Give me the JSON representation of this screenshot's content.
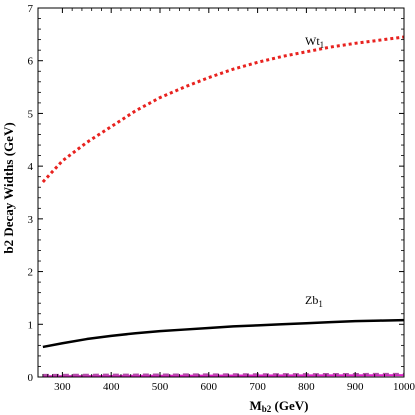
{
  "chart_data": {
    "type": "line",
    "xlabel": {
      "main": "M",
      "sub": "b2",
      "rest": " (GeV)"
    },
    "ylabel": "b2 Decay Widths (GeV)",
    "xlim": [
      250,
      1000
    ],
    "ylim": [
      0,
      7
    ],
    "x_ticks": [
      "300",
      "400",
      "500",
      "600",
      "700",
      "800",
      "900",
      "1000"
    ],
    "y_ticks": [
      "0",
      "1",
      "2",
      "3",
      "4",
      "5",
      "6",
      "7"
    ],
    "grid": false,
    "series": [
      {
        "name": "Wt1",
        "label": {
          "main": "Wt",
          "sub": "1"
        },
        "color": "#e8221f",
        "style": "dotted",
        "x": [
          260,
          300,
          350,
          400,
          450,
          500,
          550,
          600,
          650,
          700,
          750,
          800,
          850,
          900,
          950,
          1000
        ],
        "y": [
          3.7,
          4.1,
          4.45,
          4.75,
          5.05,
          5.3,
          5.5,
          5.68,
          5.84,
          5.97,
          6.08,
          6.17,
          6.26,
          6.33,
          6.39,
          6.45
        ]
      },
      {
        "name": "Zb1",
        "label": {
          "main": "Zb",
          "sub": "1"
        },
        "color": "#000000",
        "style": "solid",
        "x": [
          260,
          300,
          350,
          400,
          450,
          500,
          550,
          600,
          650,
          700,
          750,
          800,
          850,
          900,
          950,
          1000
        ],
        "y": [
          0.57,
          0.64,
          0.72,
          0.78,
          0.83,
          0.87,
          0.9,
          0.93,
          0.96,
          0.98,
          1.0,
          1.02,
          1.04,
          1.06,
          1.07,
          1.08
        ]
      },
      {
        "name": "",
        "color": "#e020c8",
        "style": "solid",
        "x": [
          260,
          400,
          600,
          800,
          1000
        ],
        "y": [
          0.015,
          0.02,
          0.025,
          0.03,
          0.035
        ]
      },
      {
        "name": "",
        "color": "#b24fa8",
        "style": "dashed",
        "x": [
          260,
          400,
          600,
          800,
          1000
        ],
        "y": [
          0.04,
          0.045,
          0.05,
          0.055,
          0.06
        ]
      }
    ]
  }
}
